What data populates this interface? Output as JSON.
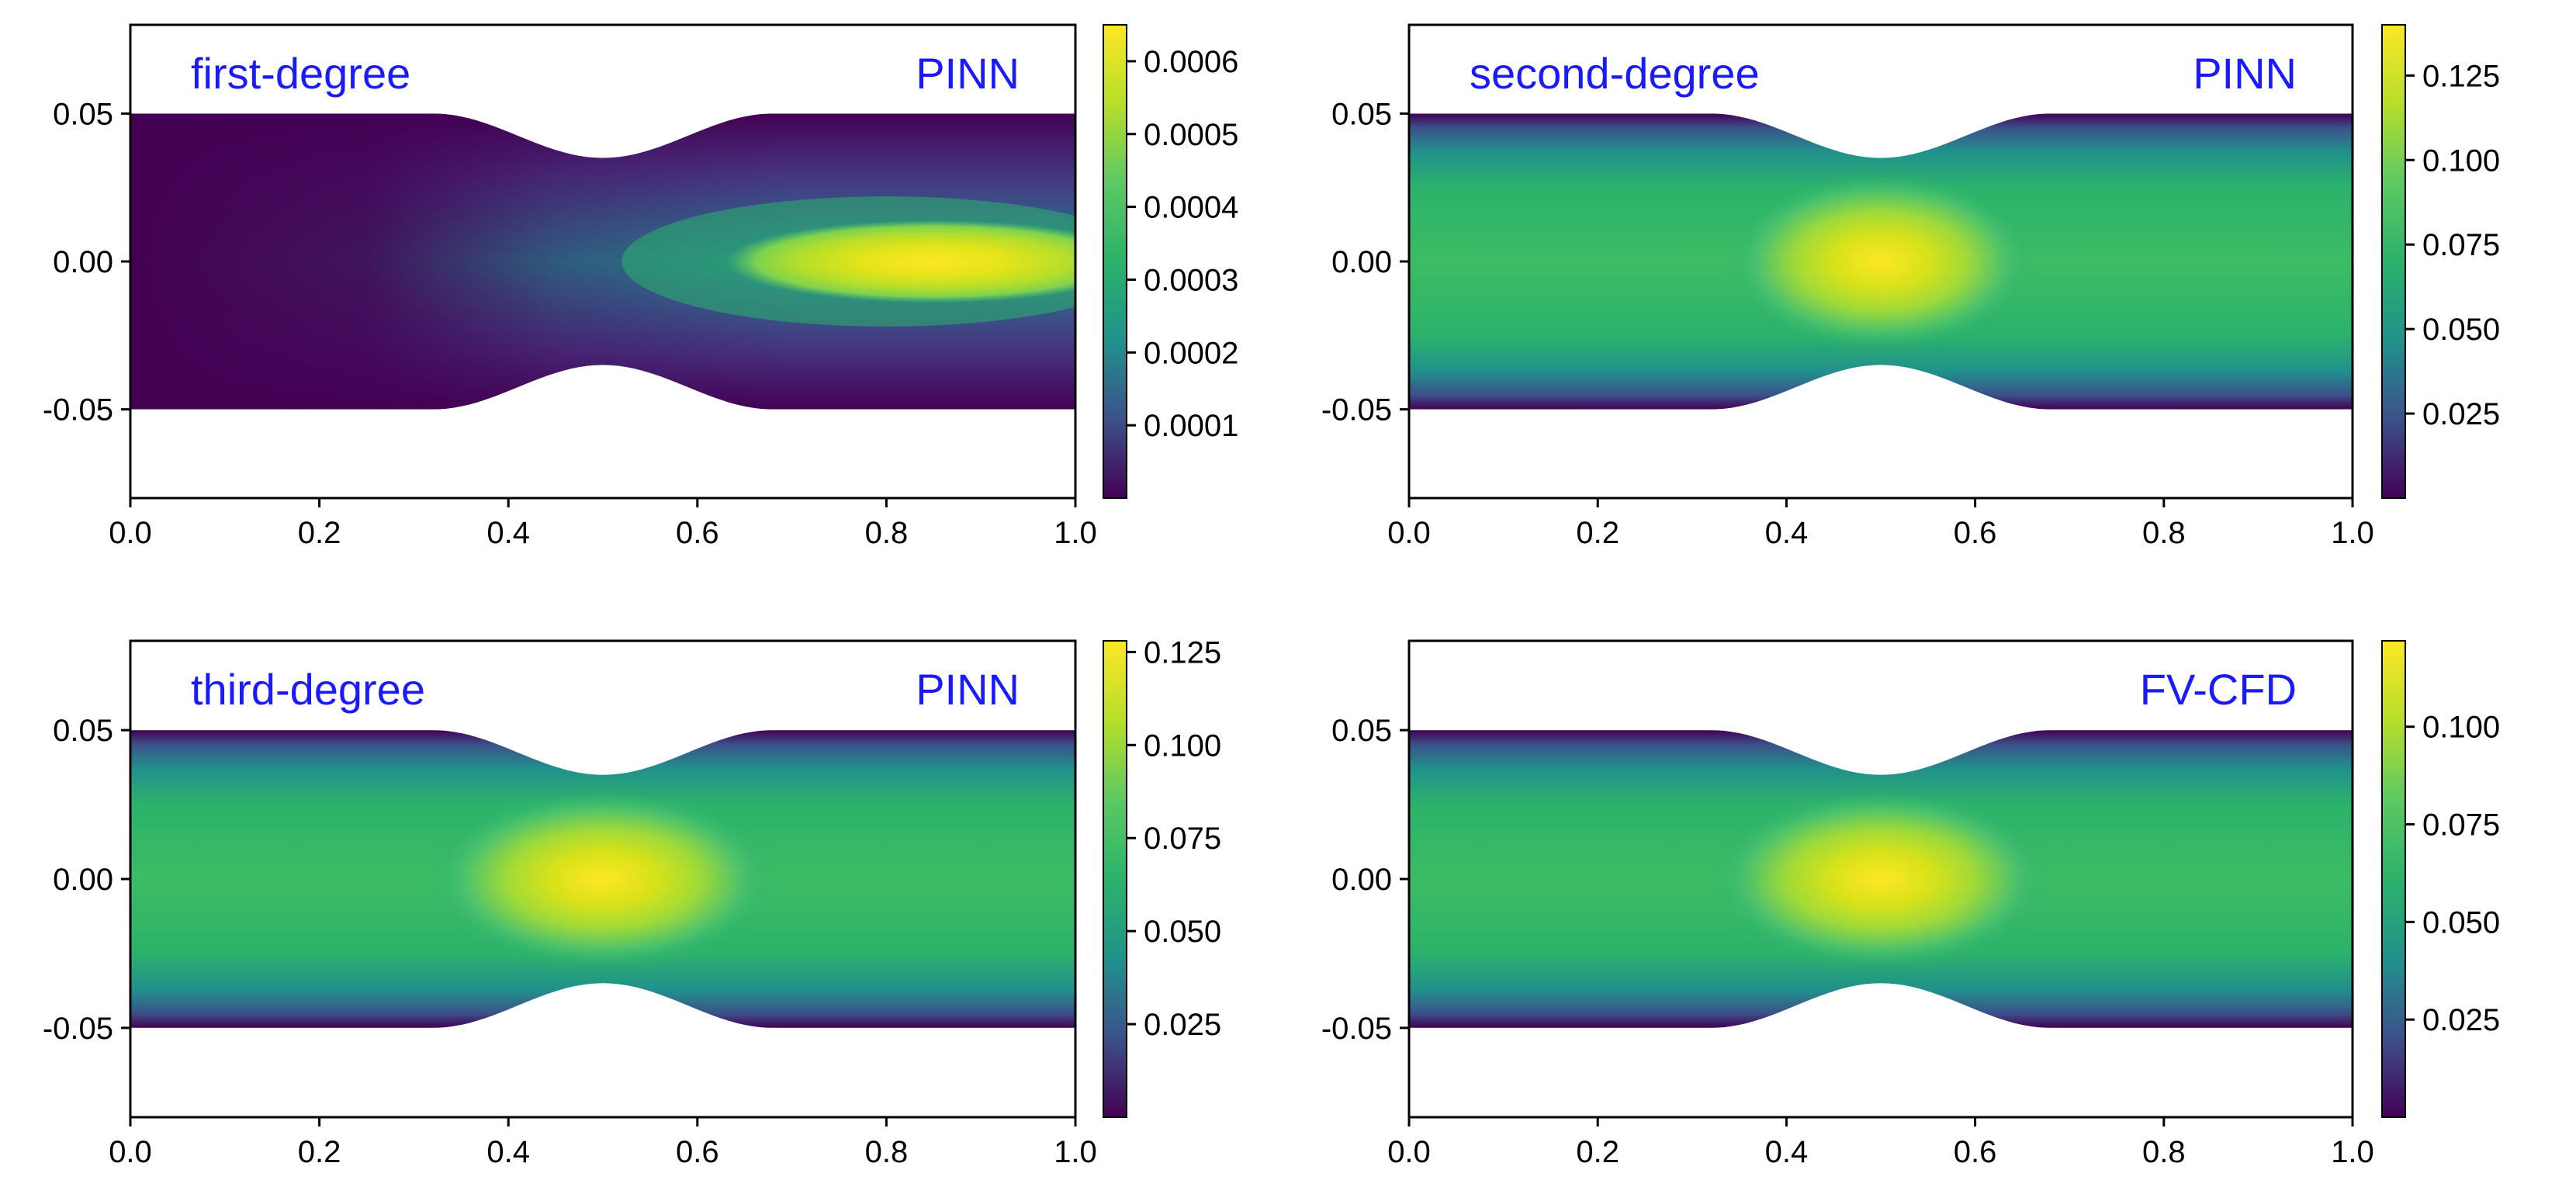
{
  "figure": {
    "description_free": true,
    "label_color": "#1a1aff",
    "colormap": [
      "#440154",
      "#3b528b",
      "#21918c",
      "#2cb26b",
      "#5ec962",
      "#b5de2b",
      "#fde725"
    ],
    "channel": {
      "x_range": [
        0.0,
        1.0
      ],
      "y_range": [
        -0.08,
        0.08
      ],
      "half_width": 0.05,
      "throat_half_width": 0.035,
      "throat_x": 0.5
    }
  },
  "chart_data": [
    {
      "type": "heatmap",
      "method_label": "first-degree",
      "model_label": "PINN",
      "xlim": [
        0.0,
        1.0
      ],
      "ylim": [
        -0.08,
        0.08
      ],
      "xticks": [
        "0.0",
        "0.2",
        "0.4",
        "0.6",
        "0.8",
        "1.0"
      ],
      "yticks": [
        "0.05",
        "0.00",
        "-0.05"
      ],
      "ytick_values": [
        0.05,
        0.0,
        -0.05
      ],
      "colorbar": {
        "range": [
          0.0,
          0.00065
        ],
        "ticks": [
          0.0001,
          0.0002,
          0.0003,
          0.0004,
          0.0005,
          0.0006
        ],
        "tick_labels": [
          "0.0001",
          "0.0002",
          "0.0003",
          "0.0004",
          "0.0005",
          "0.0006"
        ]
      },
      "field_peak": {
        "x": 0.85,
        "y": 0.0,
        "value": 0.00065
      }
    },
    {
      "type": "heatmap",
      "method_label": "second-degree",
      "model_label": "PINN",
      "xlim": [
        0.0,
        1.0
      ],
      "ylim": [
        -0.08,
        0.08
      ],
      "xticks": [
        "0.0",
        "0.2",
        "0.4",
        "0.6",
        "0.8",
        "1.0"
      ],
      "yticks": [
        "0.05",
        "0.00",
        "-0.05"
      ],
      "ytick_values": [
        0.05,
        0.0,
        -0.05
      ],
      "colorbar": {
        "range": [
          0.0,
          0.14
        ],
        "ticks": [
          0.025,
          0.05,
          0.075,
          0.1,
          0.125
        ],
        "tick_labels": [
          "0.025",
          "0.050",
          "0.075",
          "0.100",
          "0.125"
        ]
      },
      "field_peak": {
        "x": 0.5,
        "y": 0.0,
        "value": 0.14
      }
    },
    {
      "type": "heatmap",
      "method_label": "third-degree",
      "model_label": "PINN",
      "xlim": [
        0.0,
        1.0
      ],
      "ylim": [
        -0.08,
        0.08
      ],
      "xticks": [
        "0.0",
        "0.2",
        "0.4",
        "0.6",
        "0.8",
        "1.0"
      ],
      "yticks": [
        "0.05",
        "0.00",
        "-0.05"
      ],
      "ytick_values": [
        0.05,
        0.0,
        -0.05
      ],
      "colorbar": {
        "range": [
          0.0,
          0.128
        ],
        "ticks": [
          0.025,
          0.05,
          0.075,
          0.1,
          0.125
        ],
        "tick_labels": [
          "0.025",
          "0.050",
          "0.075",
          "0.100",
          "0.125"
        ]
      },
      "field_peak": {
        "x": 0.5,
        "y": 0.0,
        "value": 0.128
      }
    },
    {
      "type": "heatmap",
      "method_label": "",
      "model_label": "FV-CFD",
      "xlim": [
        0.0,
        1.0
      ],
      "ylim": [
        -0.08,
        0.08
      ],
      "xticks": [
        "0.0",
        "0.2",
        "0.4",
        "0.6",
        "0.8",
        "1.0"
      ],
      "yticks": [
        "0.05",
        "0.00",
        "-0.05"
      ],
      "ytick_values": [
        0.05,
        0.0,
        -0.05
      ],
      "colorbar": {
        "range": [
          0.0,
          0.122
        ],
        "ticks": [
          0.025,
          0.05,
          0.075,
          0.1
        ],
        "tick_labels": [
          "0.025",
          "0.050",
          "0.075",
          "0.100"
        ]
      },
      "field_peak": {
        "x": 0.5,
        "y": 0.0,
        "value": 0.122
      }
    }
  ]
}
